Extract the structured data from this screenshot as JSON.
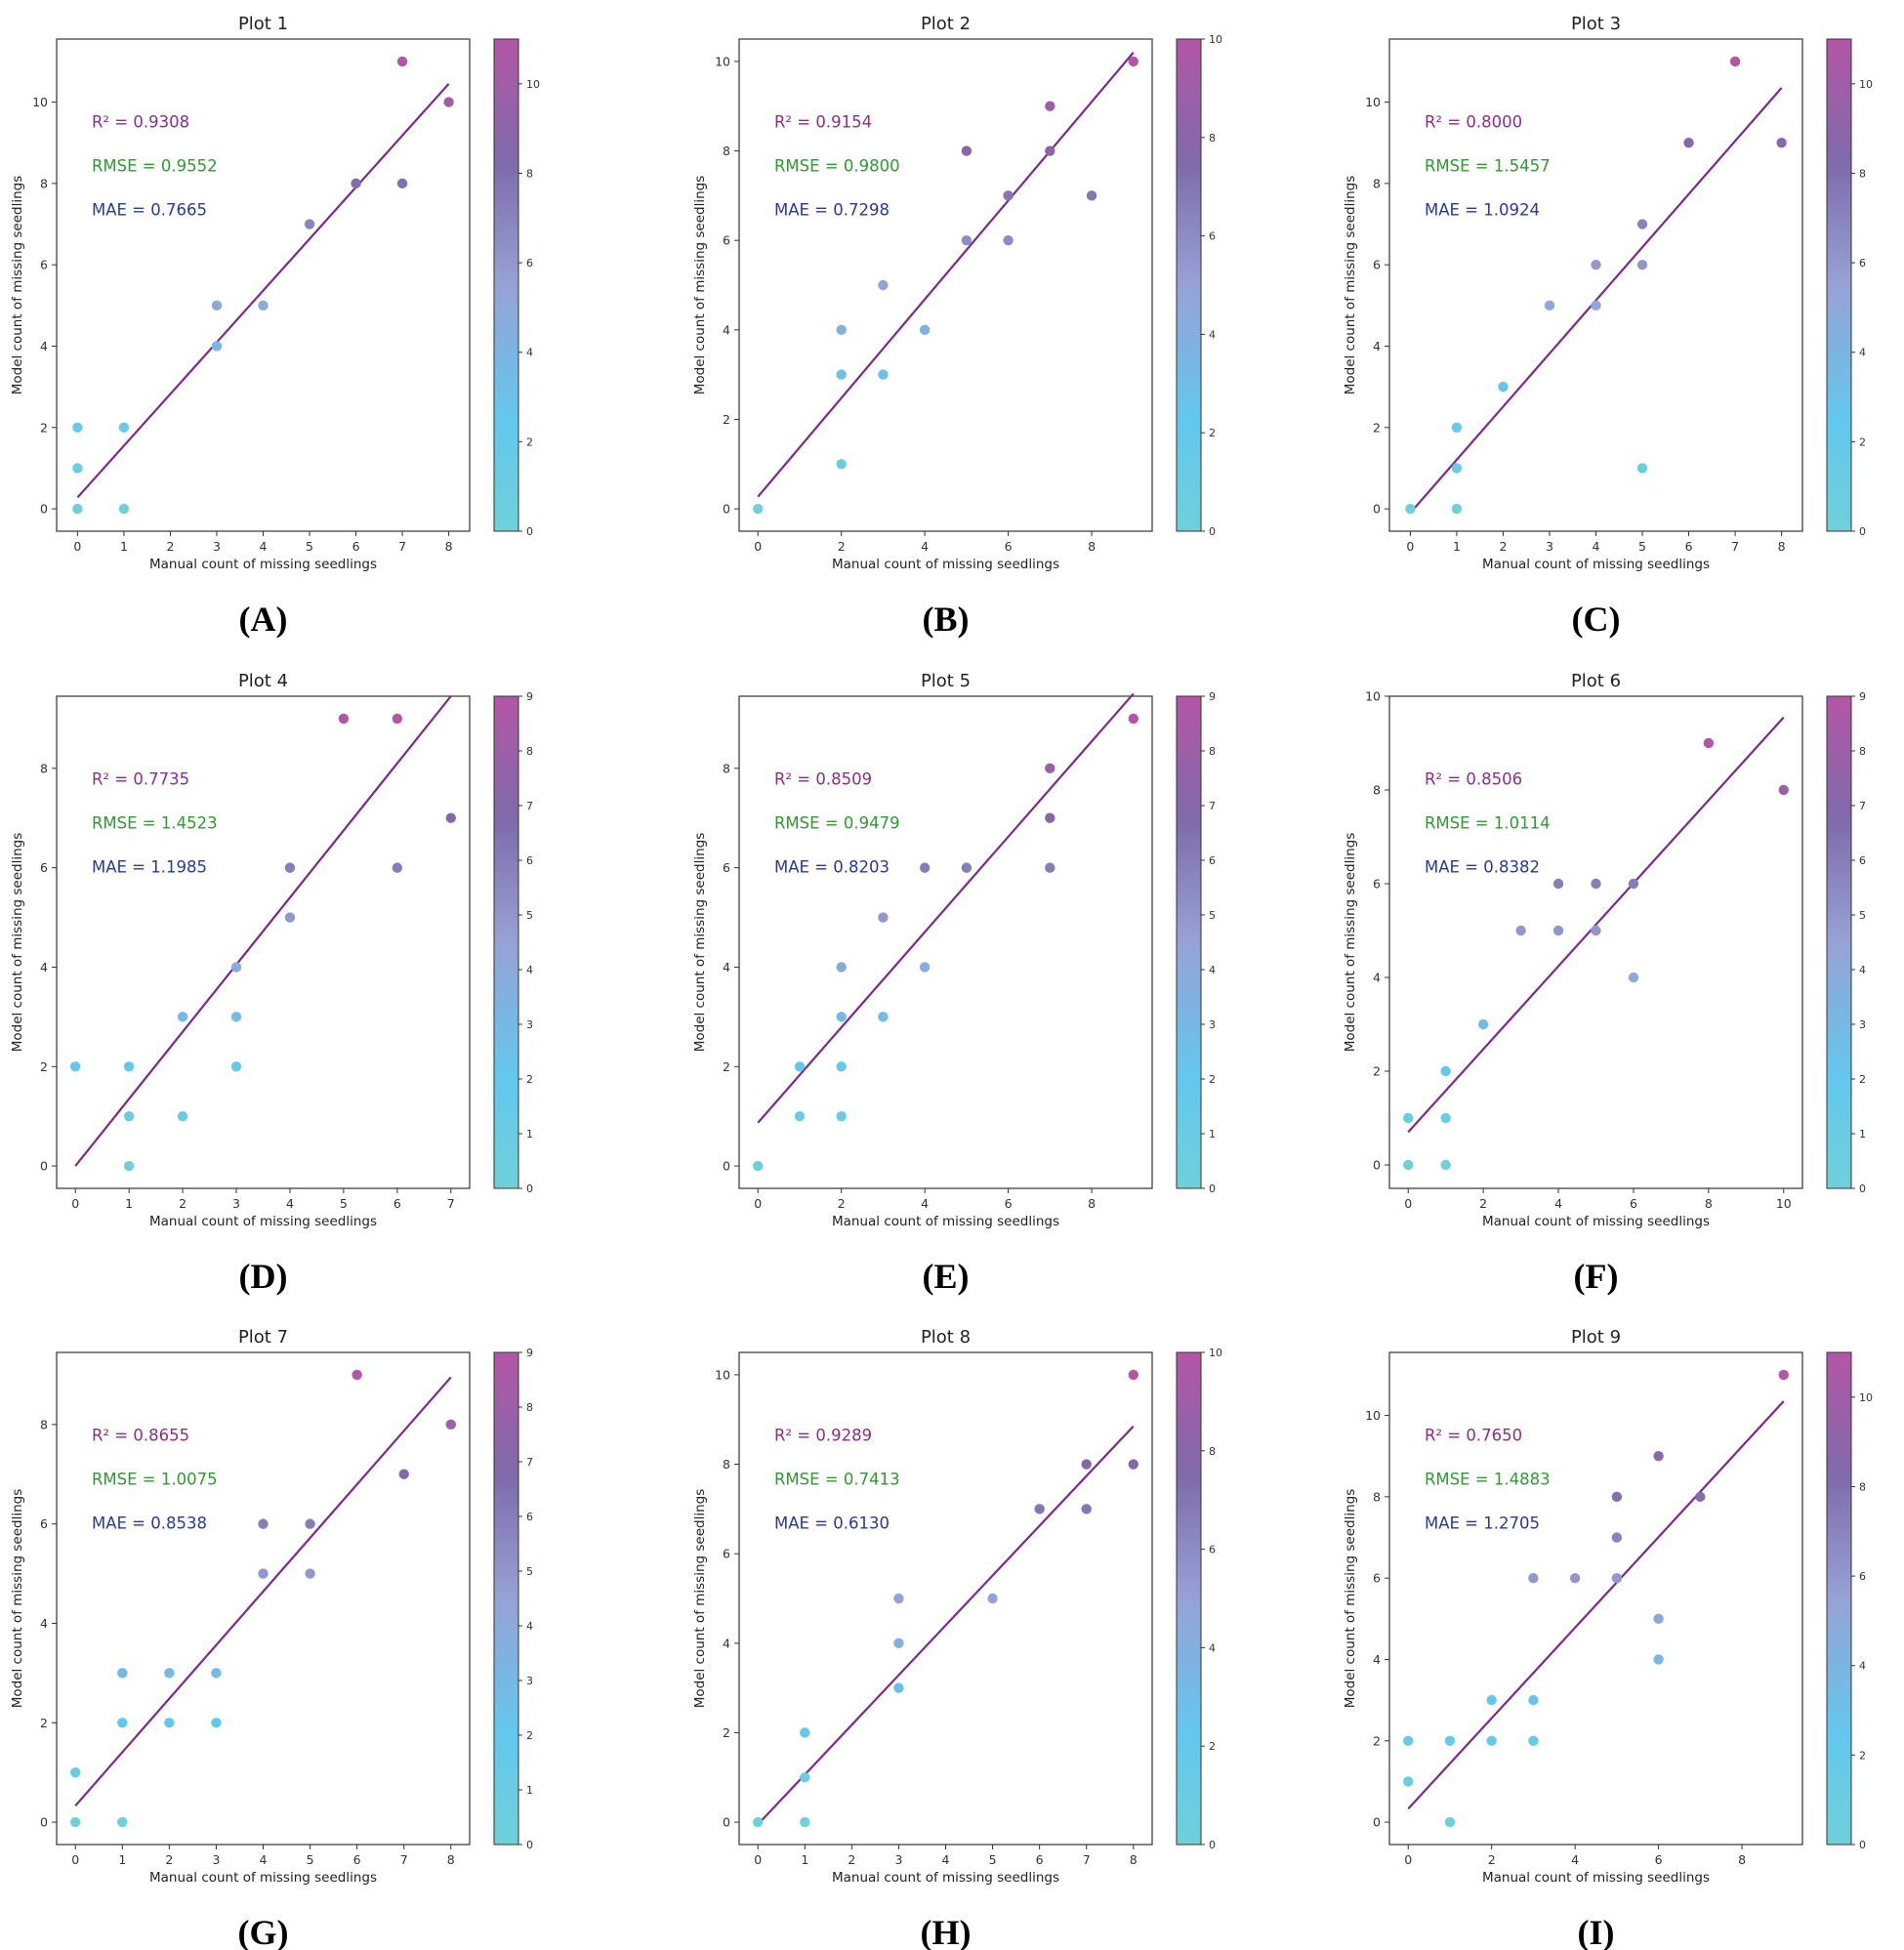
{
  "colors": {
    "cmap": [
      "#6fd0da",
      "#62c8ee",
      "#96a2d6",
      "#7f6aab",
      "#b356a6"
    ],
    "r2": "#8a2e8e",
    "rmse": "#2f9a2f",
    "mae": "#2a3a93",
    "fit_line": "#7b2a87",
    "axis": "#333333"
  },
  "chart_data": [
    {
      "type": "scatter",
      "panel_label": "(A)",
      "title": "Plot 1",
      "xlabel": "Manual count of missing seedlings",
      "ylabel": "Model count of missing seedlings",
      "xlim": [
        -0.45,
        8.45
      ],
      "ylim": [
        -0.55,
        11.55
      ],
      "xticks": [
        0,
        1,
        2,
        3,
        4,
        5,
        6,
        7,
        8
      ],
      "yticks": [
        0,
        2,
        4,
        6,
        8,
        10
      ],
      "cbar_range": [
        0,
        11
      ],
      "cbar_ticks": [
        0,
        2,
        4,
        6,
        8,
        10
      ],
      "r2": "R² = 0.9308",
      "rmse": "RMSE = 0.9552",
      "mae": "MAE = 0.7665",
      "fit": {
        "x": [
          0,
          8
        ],
        "y": [
          0.28,
          10.45
        ]
      },
      "points": [
        [
          0,
          0
        ],
        [
          0,
          1
        ],
        [
          0,
          2
        ],
        [
          1,
          0
        ],
        [
          1,
          2
        ],
        [
          3,
          4
        ],
        [
          3,
          5
        ],
        [
          4,
          5
        ],
        [
          5,
          7
        ],
        [
          6,
          8
        ],
        [
          7,
          8
        ],
        [
          7,
          11
        ],
        [
          8,
          10
        ]
      ]
    },
    {
      "type": "scatter",
      "panel_label": "(B)",
      "title": "Plot 2",
      "xlabel": "Manual count of missing seedlings",
      "ylabel": "Model count of missing seedlings",
      "xlim": [
        -0.45,
        9.45
      ],
      "ylim": [
        -0.5,
        10.5
      ],
      "xticks": [
        0,
        2,
        4,
        6,
        8
      ],
      "yticks": [
        0,
        2,
        4,
        6,
        8,
        10
      ],
      "cbar_range": [
        0,
        10
      ],
      "cbar_ticks": [
        0,
        2,
        4,
        6,
        8,
        10
      ],
      "r2": "R² = 0.9154",
      "rmse": "RMSE = 0.9800",
      "mae": "MAE = 0.7298",
      "fit": {
        "x": [
          0,
          9
        ],
        "y": [
          0.27,
          10.2
        ]
      },
      "points": [
        [
          0,
          0
        ],
        [
          2,
          1
        ],
        [
          2,
          3
        ],
        [
          2,
          4
        ],
        [
          3,
          3
        ],
        [
          3,
          5
        ],
        [
          4,
          4
        ],
        [
          5,
          6
        ],
        [
          5,
          8
        ],
        [
          6,
          6
        ],
        [
          6,
          7
        ],
        [
          7,
          8
        ],
        [
          7,
          9
        ],
        [
          8,
          7
        ],
        [
          9,
          10
        ]
      ]
    },
    {
      "type": "scatter",
      "panel_label": "(C)",
      "title": "Plot 3",
      "xlabel": "Manual count of missing seedlings",
      "ylabel": "Model count of missing seedlings",
      "xlim": [
        -0.45,
        8.45
      ],
      "ylim": [
        -0.55,
        11.55
      ],
      "xticks": [
        0,
        1,
        2,
        3,
        4,
        5,
        6,
        7,
        8
      ],
      "yticks": [
        0,
        2,
        4,
        6,
        8,
        10
      ],
      "cbar_range": [
        0,
        11
      ],
      "cbar_ticks": [
        0,
        2,
        4,
        6,
        8,
        10
      ],
      "r2": "R² = 0.8000",
      "rmse": "RMSE = 1.5457",
      "mae": "MAE = 1.0924",
      "fit": {
        "x": [
          0,
          8
        ],
        "y": [
          -0.1,
          10.35
        ]
      },
      "points": [
        [
          0,
          0
        ],
        [
          1,
          0
        ],
        [
          1,
          1
        ],
        [
          1,
          2
        ],
        [
          2,
          3
        ],
        [
          3,
          5
        ],
        [
          4,
          5
        ],
        [
          4,
          6
        ],
        [
          5,
          1
        ],
        [
          5,
          6
        ],
        [
          5,
          7
        ],
        [
          6,
          9
        ],
        [
          7,
          11
        ],
        [
          8,
          9
        ]
      ]
    },
    {
      "type": "scatter",
      "panel_label": "(D)",
      "title": "Plot 4",
      "xlabel": "Manual count of missing seedlings",
      "ylabel": "Model count of missing seedlings",
      "xlim": [
        -0.35,
        7.35
      ],
      "ylim": [
        -0.45,
        9.45
      ],
      "xticks": [
        0,
        1,
        2,
        3,
        4,
        5,
        6,
        7
      ],
      "yticks": [
        0,
        2,
        4,
        6,
        8
      ],
      "cbar_range": [
        0,
        9
      ],
      "cbar_ticks": [
        0,
        1,
        2,
        3,
        4,
        5,
        6,
        7,
        8,
        9
      ],
      "r2": "R² = 0.7735",
      "rmse": "RMSE = 1.4523",
      "mae": "MAE = 1.1985",
      "fit": {
        "x": [
          0,
          7
        ],
        "y": [
          0,
          9.45
        ]
      },
      "points": [
        [
          0,
          2
        ],
        [
          1,
          0
        ],
        [
          1,
          1
        ],
        [
          1,
          2
        ],
        [
          2,
          1
        ],
        [
          2,
          3
        ],
        [
          3,
          2
        ],
        [
          3,
          3
        ],
        [
          3,
          4
        ],
        [
          4,
          5
        ],
        [
          4,
          6
        ],
        [
          5,
          9
        ],
        [
          6,
          6
        ],
        [
          6,
          9
        ],
        [
          7,
          7
        ]
      ]
    },
    {
      "type": "scatter",
      "panel_label": "(E)",
      "title": "Plot 5",
      "xlabel": "Manual count of missing seedlings",
      "ylabel": "Model count of missing seedlings",
      "xlim": [
        -0.45,
        9.45
      ],
      "ylim": [
        -0.45,
        9.45
      ],
      "xticks": [
        0,
        2,
        4,
        6,
        8
      ],
      "yticks": [
        0,
        2,
        4,
        6,
        8
      ],
      "cbar_range": [
        0,
        9
      ],
      "cbar_ticks": [
        0,
        1,
        2,
        3,
        4,
        5,
        6,
        7,
        8,
        9
      ],
      "r2": "R² = 0.8509",
      "rmse": "RMSE = 0.9479",
      "mae": "MAE = 0.8203",
      "fit": {
        "x": [
          0,
          9
        ],
        "y": [
          0.87,
          9.5
        ]
      },
      "points": [
        [
          0,
          0
        ],
        [
          1,
          1
        ],
        [
          1,
          2
        ],
        [
          2,
          1
        ],
        [
          2,
          2
        ],
        [
          2,
          3
        ],
        [
          2,
          4
        ],
        [
          3,
          3
        ],
        [
          3,
          5
        ],
        [
          4,
          4
        ],
        [
          4,
          6
        ],
        [
          5,
          6
        ],
        [
          7,
          6
        ],
        [
          7,
          7
        ],
        [
          7,
          8
        ],
        [
          9,
          9
        ]
      ]
    },
    {
      "type": "scatter",
      "panel_label": "(F)",
      "title": "Plot 6",
      "xlabel": "Manual count of missing seedlings",
      "ylabel": "Model count of missing seedlings",
      "xlim": [
        -0.5,
        10.5
      ],
      "ylim": [
        -0.5,
        10.0
      ],
      "xticks": [
        0,
        2,
        4,
        6,
        8,
        10
      ],
      "yticks": [
        0,
        2,
        4,
        6,
        8,
        10
      ],
      "cbar_range": [
        0,
        9
      ],
      "cbar_ticks": [
        0,
        1,
        2,
        3,
        4,
        5,
        6,
        7,
        8,
        9
      ],
      "r2": "R² = 0.8506",
      "rmse": "RMSE = 1.0114",
      "mae": "MAE = 0.8382",
      "fit": {
        "x": [
          0,
          10
        ],
        "y": [
          0.7,
          9.55
        ]
      },
      "points": [
        [
          0,
          0
        ],
        [
          0,
          1
        ],
        [
          1,
          0
        ],
        [
          1,
          1
        ],
        [
          1,
          2
        ],
        [
          2,
          3
        ],
        [
          3,
          5
        ],
        [
          4,
          5
        ],
        [
          4,
          6
        ],
        [
          5,
          5
        ],
        [
          5,
          6
        ],
        [
          6,
          4
        ],
        [
          6,
          6
        ],
        [
          8,
          9
        ],
        [
          10,
          8
        ]
      ]
    },
    {
      "type": "scatter",
      "panel_label": "(G)",
      "title": "Plot 7",
      "xlabel": "Manual count of missing seedlings",
      "ylabel": "Model count of missing seedlings",
      "xlim": [
        -0.4,
        8.4
      ],
      "ylim": [
        -0.45,
        9.45
      ],
      "xticks": [
        0,
        1,
        2,
        3,
        4,
        5,
        6,
        7,
        8
      ],
      "yticks": [
        0,
        2,
        4,
        6,
        8
      ],
      "cbar_range": [
        0,
        9
      ],
      "cbar_ticks": [
        0,
        1,
        2,
        3,
        4,
        5,
        6,
        7,
        8,
        9
      ],
      "r2": "R² = 0.8655",
      "rmse": "RMSE = 1.0075",
      "mae": "MAE = 0.8538",
      "fit": {
        "x": [
          0,
          8
        ],
        "y": [
          0.33,
          8.95
        ]
      },
      "points": [
        [
          0,
          0
        ],
        [
          0,
          1
        ],
        [
          1,
          0
        ],
        [
          1,
          2
        ],
        [
          1,
          3
        ],
        [
          2,
          2
        ],
        [
          2,
          3
        ],
        [
          3,
          2
        ],
        [
          3,
          3
        ],
        [
          4,
          5
        ],
        [
          4,
          6
        ],
        [
          5,
          5
        ],
        [
          5,
          6
        ],
        [
          6,
          9
        ],
        [
          7,
          7
        ],
        [
          8,
          8
        ]
      ]
    },
    {
      "type": "scatter",
      "panel_label": "(H)",
      "title": "Plot 8",
      "xlabel": "Manual count of missing seedlings",
      "ylabel": "Model count of missing seedlings",
      "xlim": [
        -0.4,
        8.4
      ],
      "ylim": [
        -0.5,
        10.5
      ],
      "xticks": [
        0,
        1,
        2,
        3,
        4,
        5,
        6,
        7,
        8
      ],
      "yticks": [
        0,
        2,
        4,
        6,
        8,
        10
      ],
      "cbar_range": [
        0,
        10
      ],
      "cbar_ticks": [
        0,
        2,
        4,
        6,
        8,
        10
      ],
      "r2": "R² = 0.9289",
      "rmse": "RMSE = 0.7413",
      "mae": "MAE = 0.6130",
      "fit": {
        "x": [
          0,
          8
        ],
        "y": [
          -0.05,
          8.85
        ]
      },
      "points": [
        [
          0,
          0
        ],
        [
          1,
          0
        ],
        [
          1,
          1
        ],
        [
          1,
          2
        ],
        [
          3,
          3
        ],
        [
          3,
          4
        ],
        [
          3,
          5
        ],
        [
          5,
          5
        ],
        [
          6,
          7
        ],
        [
          7,
          7
        ],
        [
          7,
          8
        ],
        [
          8,
          8
        ],
        [
          8,
          10
        ]
      ]
    },
    {
      "type": "scatter",
      "panel_label": "(I)",
      "title": "Plot 9",
      "xlabel": "Manual count of missing seedlings",
      "ylabel": "Model count of missing seedlings",
      "xlim": [
        -0.45,
        9.45
      ],
      "ylim": [
        -0.55,
        11.55
      ],
      "xticks": [
        0,
        2,
        4,
        6,
        8
      ],
      "yticks": [
        0,
        2,
        4,
        6,
        8,
        10
      ],
      "cbar_range": [
        0,
        11
      ],
      "cbar_ticks": [
        0,
        2,
        4,
        6,
        8,
        10
      ],
      "r2": "R² = 0.7650",
      "rmse": "RMSE = 1.4883",
      "mae": "MAE = 1.2705",
      "fit": {
        "x": [
          0,
          9
        ],
        "y": [
          0.33,
          10.35
        ]
      },
      "points": [
        [
          0,
          1
        ],
        [
          0,
          2
        ],
        [
          1,
          0
        ],
        [
          1,
          2
        ],
        [
          2,
          2
        ],
        [
          2,
          3
        ],
        [
          3,
          2
        ],
        [
          3,
          3
        ],
        [
          3,
          6
        ],
        [
          4,
          6
        ],
        [
          5,
          6
        ],
        [
          5,
          7
        ],
        [
          5,
          8
        ],
        [
          6,
          4
        ],
        [
          6,
          5
        ],
        [
          6,
          9
        ],
        [
          7,
          8
        ],
        [
          9,
          11
        ]
      ]
    }
  ]
}
